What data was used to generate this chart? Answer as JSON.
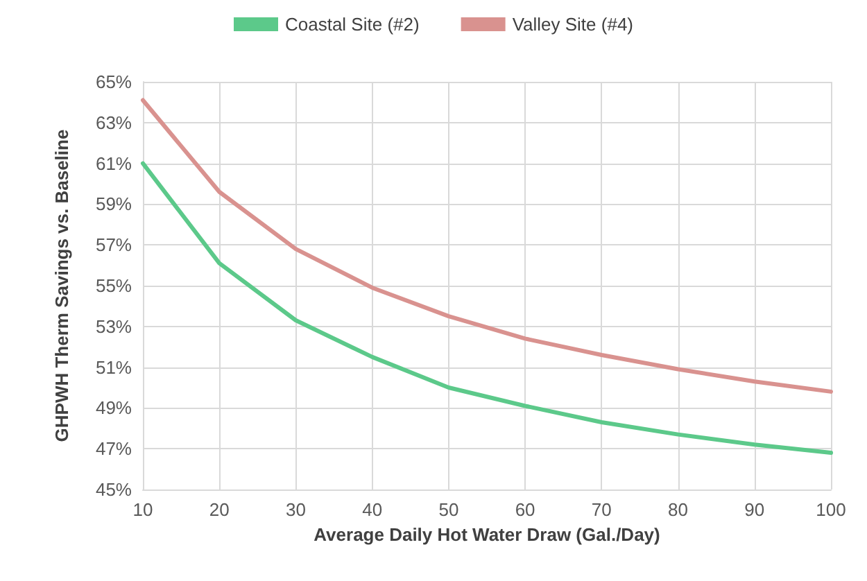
{
  "chart_data": {
    "type": "line",
    "xlabel": "Average Daily Hot Water Draw (Gal./Day)",
    "ylabel": "GHPWH Therm Savings vs. Baseline",
    "x": [
      10,
      20,
      30,
      40,
      50,
      60,
      70,
      80,
      90,
      100
    ],
    "series": [
      {
        "name": "Coastal Site (#2)",
        "color": "#5cc98a",
        "values": [
          61.0,
          56.1,
          53.3,
          51.5,
          50.0,
          49.1,
          48.3,
          47.7,
          47.2,
          46.8
        ]
      },
      {
        "name": "Valley Site (#4)",
        "color": "#d9928f",
        "values": [
          64.1,
          59.6,
          56.8,
          54.9,
          53.5,
          52.4,
          51.6,
          50.9,
          50.3,
          49.8
        ]
      }
    ],
    "xlim": [
      10,
      100
    ],
    "xticks": [
      10,
      20,
      30,
      40,
      50,
      60,
      70,
      80,
      90,
      100
    ],
    "ylim": [
      45,
      65
    ],
    "yticks": [
      {
        "value": 45,
        "label": "45%"
      },
      {
        "value": 47,
        "label": "47%"
      },
      {
        "value": 49,
        "label": "49%"
      },
      {
        "value": 51,
        "label": "51%"
      },
      {
        "value": 53,
        "label": "53%"
      },
      {
        "value": 55,
        "label": "55%"
      },
      {
        "value": 57,
        "label": "57%"
      },
      {
        "value": 59,
        "label": "59%"
      },
      {
        "value": 61,
        "label": "61%"
      },
      {
        "value": 63,
        "label": "63%"
      },
      {
        "value": 65,
        "label": "65%"
      }
    ],
    "grid": true,
    "legend": "top",
    "marker": "none",
    "line_style": "solid"
  }
}
